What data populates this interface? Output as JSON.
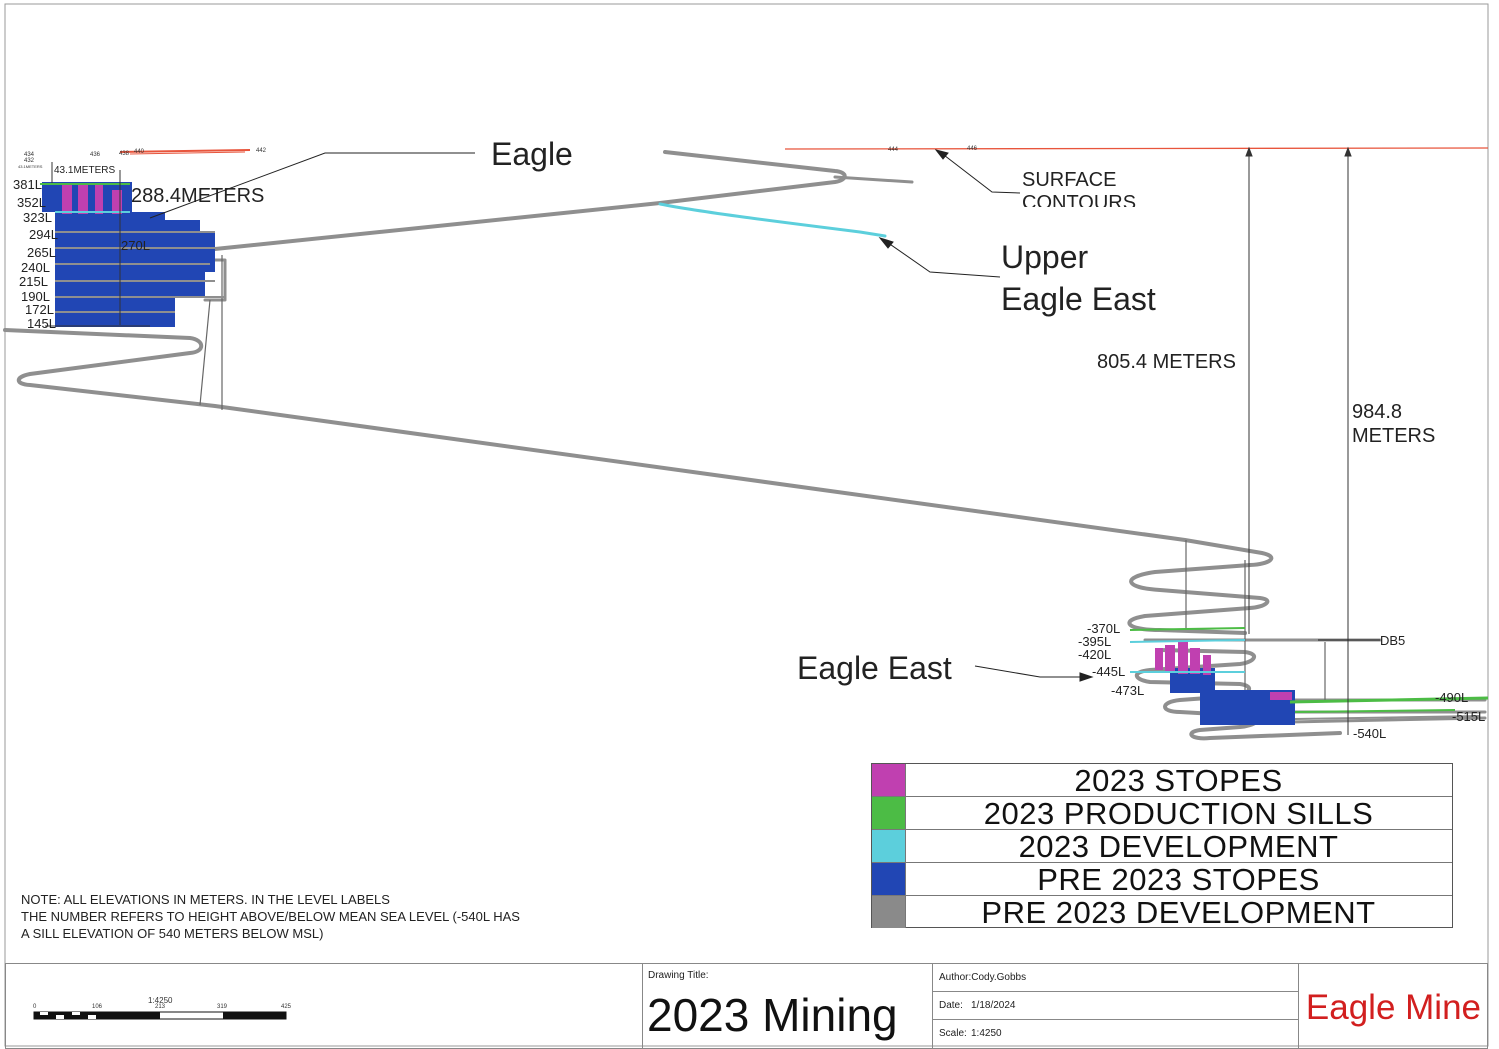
{
  "labels": {
    "eagle": "Eagle",
    "upper_eagle_east": [
      "Upper",
      "Eagle East"
    ],
    "eagle_east": "Eagle East",
    "surface_contours": [
      "SURFACE",
      "CONTOURS"
    ],
    "dim_805": "805.4 METERS",
    "dim_984": [
      "984.8",
      "METERS"
    ],
    "dim_288": "288.4METERS",
    "dim_43": "43.1METERS",
    "dim_43_small": "43.1METERS",
    "db5": "DB5"
  },
  "contour_labels_left": [
    "434",
    "432",
    "436",
    "438",
    "440",
    "442"
  ],
  "contour_labels_right": [
    "444",
    "446"
  ],
  "levels_eagle": [
    "381L",
    "352L",
    "323L",
    "294L",
    "270L",
    "265L",
    "240L",
    "215L",
    "190L",
    "172L",
    "145L"
  ],
  "levels_east": [
    "-370L",
    "-395L",
    "-420L",
    "-445L",
    "-473L",
    "-490L",
    "-515L",
    "-540L"
  ],
  "legend": [
    {
      "label": "2023 STOPES",
      "color": "#c040b0"
    },
    {
      "label": "2023 PRODUCTION SILLS",
      "color": "#4cbc45"
    },
    {
      "label": "2023 DEVELOPMENT",
      "color": "#5ccfdc"
    },
    {
      "label": "PRE 2023 STOPES",
      "color": "#2146b4"
    },
    {
      "label": "PRE 2023 DEVELOPMENT",
      "color": "#8a8a8a"
    }
  ],
  "note": [
    "NOTE: ALL ELEVATIONS IN METERS. IN THE LEVEL LABELS",
    "THE NUMBER REFERS TO HEIGHT ABOVE/BELOW MEAN SEA LEVEL (-540L HAS",
    "A SILL ELEVATION OF 540 METERS BELOW MSL)"
  ],
  "scale_bar": {
    "ticks": [
      "0",
      "106",
      "213",
      "319",
      "425"
    ],
    "ratio": "1:4250"
  },
  "title_block": {
    "drawing_title_label": "Drawing Title:",
    "drawing_title": "2023 Mining",
    "author": "Author:Cody.Gobbs",
    "date_label": "Date:",
    "date": "1/18/2024",
    "scale_label": "Scale:",
    "scale": "1:4250",
    "company": "Eagle Mine"
  },
  "colors": {
    "surface": "#e8553c",
    "ramp": "#8f8f8f",
    "ramp_dark": "#555555",
    "pre_stopes": "#2146b4",
    "stopes_2023": "#c040b0",
    "sills_2023": "#4cbc45",
    "dev_2023": "#5ccfdc"
  }
}
